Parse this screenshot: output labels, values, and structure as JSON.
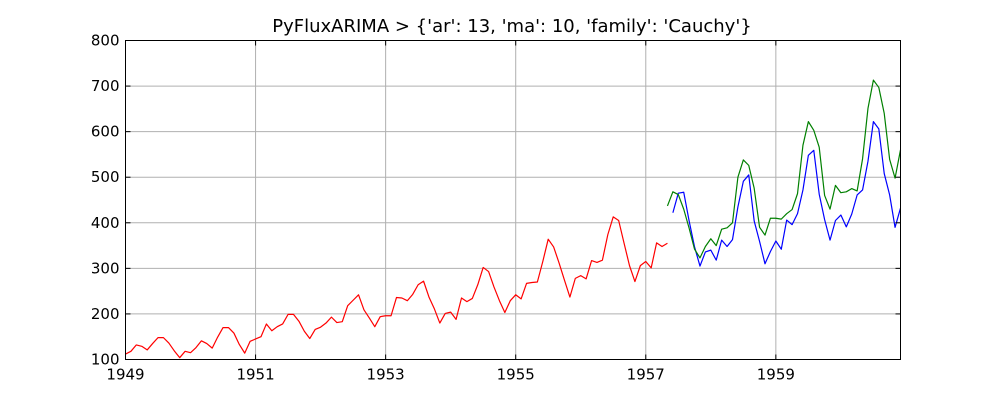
{
  "chart_data": {
    "type": "line",
    "title": "PyFluxARIMA > {'ar': 13, 'ma': 10, 'family': 'Cauchy'}",
    "xlabel": "",
    "ylabel": "",
    "xlim": [
      1949.0,
      1960.9167
    ],
    "ylim": [
      100,
      800
    ],
    "x_ticks": [
      1949,
      1951,
      1953,
      1955,
      1957,
      1959
    ],
    "x_tick_labels": [
      "1949",
      "1951",
      "1953",
      "1955",
      "1957",
      "1959"
    ],
    "y_ticks": [
      100,
      200,
      300,
      400,
      500,
      600,
      700,
      800
    ],
    "y_tick_labels": [
      "100",
      "200",
      "300",
      "400",
      "500",
      "600",
      "700",
      "800"
    ],
    "grid": true,
    "series": [
      {
        "color": "#ff0000",
        "x_start": 1949.0,
        "x_step": 0.08333,
        "values": [
          112,
          118,
          132,
          129,
          121,
          135,
          148,
          148,
          136,
          119,
          104,
          118,
          115,
          126,
          141,
          135,
          125,
          149,
          170,
          170,
          158,
          133,
          114,
          140,
          145,
          150,
          178,
          163,
          172,
          178,
          199,
          199,
          184,
          162,
          146,
          166,
          171,
          180,
          193,
          181,
          183,
          218,
          230,
          242,
          209,
          191,
          172,
          194,
          196,
          196,
          236,
          235,
          229,
          243,
          264,
          272,
          237,
          211,
          180,
          201,
          204,
          188,
          235,
          227,
          234,
          264,
          302,
          293,
          259,
          229,
          203,
          229,
          242,
          233,
          267,
          269,
          270,
          315,
          364,
          347,
          312,
          274,
          237,
          278,
          284,
          277,
          317,
          313,
          318,
          374,
          413,
          405,
          355,
          306,
          271,
          306,
          315,
          301,
          356,
          348,
          355
        ]
      },
      {
        "color": "#0000ff",
        "x_start": 1957.4167,
        "x_step": 0.08333,
        "values": [
          422,
          465,
          467,
          404,
          347,
          305,
          336,
          340,
          318,
          362,
          348,
          363,
          435,
          491,
          505,
          404,
          359,
          310,
          337,
          360,
          342,
          406,
          396,
          420,
          472,
          548,
          559,
          463,
          407,
          362,
          405,
          417,
          391,
          419,
          461,
          472,
          535,
          622,
          606,
          508,
          461,
          390,
          432
        ]
      },
      {
        "color": "#008000",
        "x_start": 1957.3333,
        "x_step": 0.08333,
        "values": [
          437,
          468,
          462,
          430,
          388,
          342,
          323,
          348,
          365,
          350,
          386,
          389,
          400,
          500,
          538,
          526,
          476,
          390,
          373,
          410,
          410,
          408,
          420,
          429,
          464,
          570,
          622,
          603,
          566,
          460,
          430,
          482,
          466,
          468,
          475,
          470,
          540,
          651,
          713,
          697,
          640,
          539,
          498,
          560
        ]
      }
    ]
  }
}
